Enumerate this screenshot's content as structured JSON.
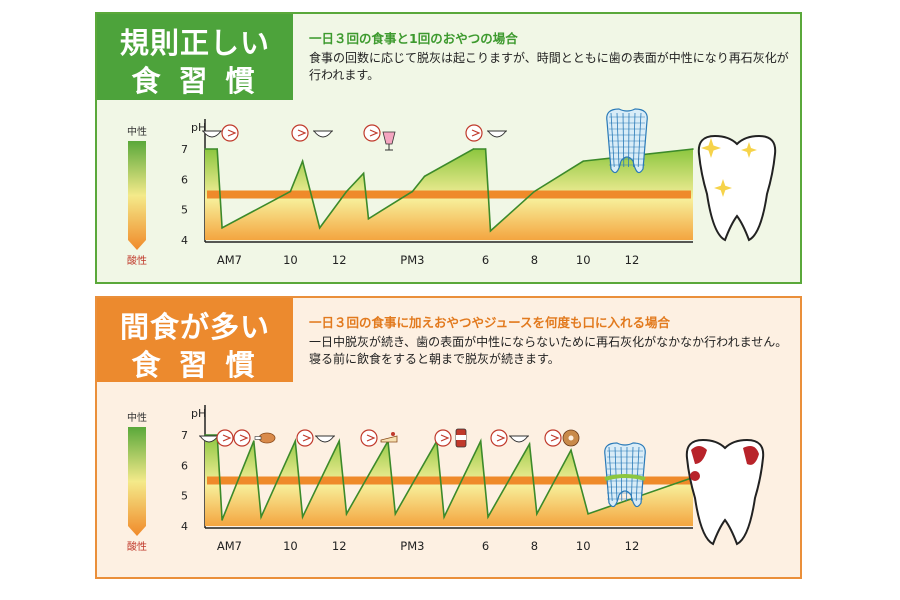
{
  "colors": {
    "green": "#4da33b",
    "orange": "#ec8a2e",
    "fill_top": "#8cc63f",
    "fill_bottom": "#f4a540",
    "threshold": "#ef8a2a",
    "curve": "#3c8a2a"
  },
  "panel1": {
    "banner_line1": "規則正しい",
    "banner_line2": "食習慣",
    "subtitle": "一日３回の食事と1回のおやつの場合",
    "body": "食事の回数に応じて脱灰は起こりますが、時間とともに歯の表面が中性になり再石灰化が行われます。",
    "scale_top": "中性",
    "scale_bottom": "酸性",
    "icons": [
      "bowl-icon",
      "mouth-icon",
      "parfait-icon",
      "healthy-tooth-icon"
    ]
  },
  "panel2": {
    "banner_line1": "間食が多い",
    "banner_line2": "食習慣",
    "subtitle": "一日３回の食事に加えおやつやジュースを何度も口に入れる場合",
    "body": "一日中脱灰が続き、歯の表面が中性にならないために再石灰化がなかなか行われません。寝る前に飲食をすると朝まで脱灰が続きます。",
    "scale_top": "中性",
    "scale_bottom": "酸性",
    "icons": [
      "bowl-icon",
      "mouth-icon",
      "chicken-icon",
      "cake-icon",
      "can-icon",
      "donut-icon",
      "decayed-tooth-icon"
    ]
  },
  "chart_data": [
    {
      "type": "area",
      "ylabel": "pH",
      "yticks": [
        "7",
        "6",
        "5",
        "4"
      ],
      "ylim": [
        4,
        7.5
      ],
      "x_ticks": [
        "AM7",
        "10",
        "12",
        "PM3",
        "6",
        "8",
        "10",
        "12"
      ],
      "threshold_ph": 5.5,
      "series": [
        {
          "x": [
            6.5,
            7,
            7.2,
            10,
            10.5,
            11.2,
            12.3,
            13,
            13.2,
            15,
            15.5,
            17.5,
            18,
            18.2,
            20,
            22,
            26.5
          ],
          "y": [
            7,
            7,
            4.4,
            5.6,
            6.6,
            4.4,
            5.6,
            6.2,
            4.7,
            5.6,
            6.1,
            7.0,
            7.0,
            4.3,
            5.6,
            6.6,
            7.0
          ]
        }
      ]
    },
    {
      "type": "area",
      "ylabel": "pH",
      "yticks": [
        "7",
        "6",
        "5",
        "4"
      ],
      "ylim": [
        4,
        7.5
      ],
      "x_ticks": [
        "AM7",
        "10",
        "12",
        "PM3",
        "6",
        "8",
        "10",
        "12"
      ],
      "threshold_ph": 5.5,
      "series": [
        {
          "x": [
            6.5,
            7,
            7.2,
            8.5,
            8.8,
            10.2,
            10.5,
            12,
            12.3,
            14,
            14.3,
            16,
            16.3,
            17.8,
            18.1,
            19.8,
            20.1,
            21.5,
            22.2,
            26.5
          ],
          "y": [
            7,
            7,
            4.2,
            6.8,
            4.3,
            6.8,
            4.3,
            6.8,
            4.4,
            6.8,
            4.4,
            6.8,
            4.3,
            6.8,
            4.3,
            6.7,
            4.4,
            6.5,
            4.4,
            5.6
          ]
        }
      ]
    }
  ]
}
